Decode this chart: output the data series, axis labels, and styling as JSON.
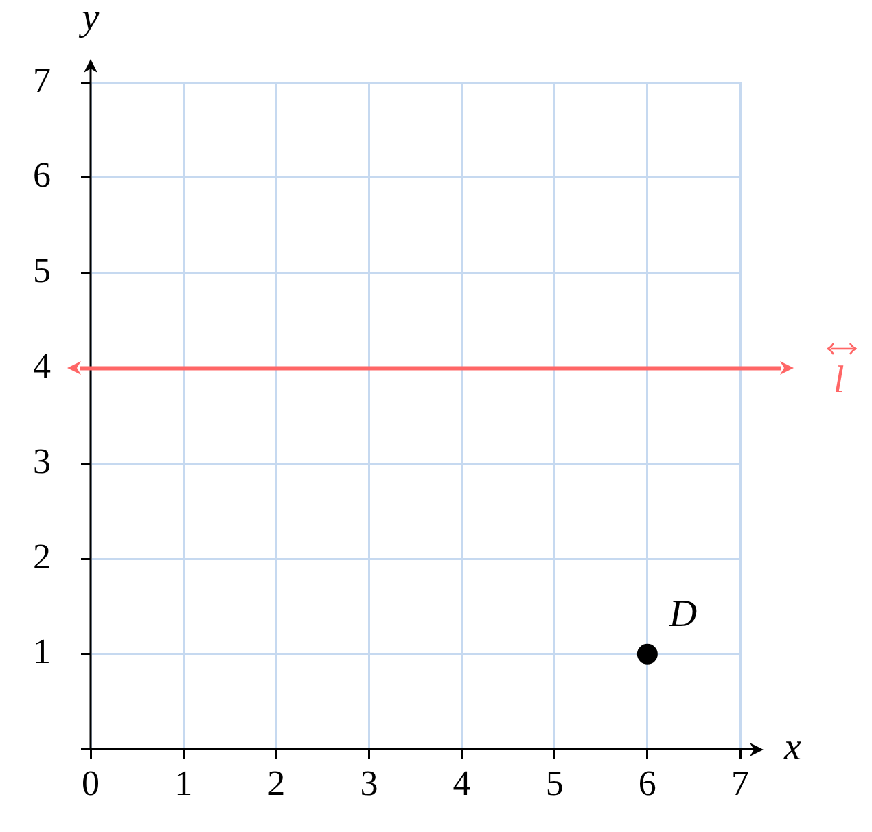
{
  "chart_data": {
    "type": "scatter",
    "xlabel": "x",
    "ylabel": "y",
    "x": [
      6
    ],
    "values": [
      1
    ],
    "color": "#000000",
    "marker": "circle",
    "grid": true,
    "legend": false,
    "xlim": [
      0,
      7
    ],
    "ylim": [
      0,
      7
    ],
    "xticks": [
      {
        "value": 0,
        "label": "0"
      },
      1,
      2,
      3,
      4,
      5,
      6,
      7
    ],
    "yticks": [
      {
        "value": 0,
        "label": null
      },
      1,
      2,
      3,
      4,
      5,
      6,
      7
    ],
    "ref_lines": [
      {
        "axis": "y",
        "value": 4,
        "label": "l",
        "color": "#ff6666"
      }
    ],
    "annotations": [
      {
        "text": "D",
        "x": 6,
        "y": 1
      }
    ]
  }
}
